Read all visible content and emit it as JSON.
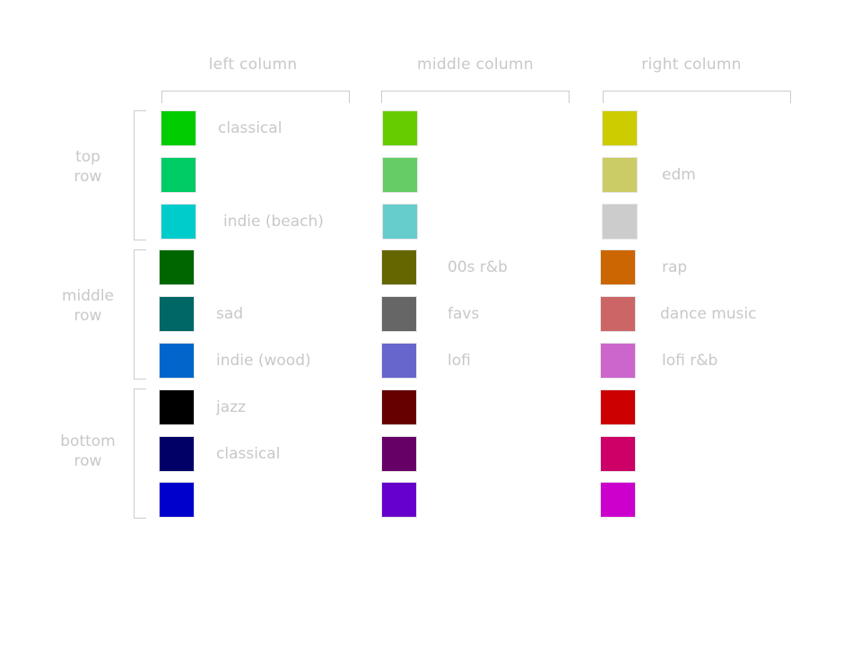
{
  "columns": [
    {
      "label": "left column"
    },
    {
      "label": "middle column"
    },
    {
      "label": "right column"
    }
  ],
  "rows": [
    {
      "label": "top\nrow"
    },
    {
      "label": "middle\nrow"
    },
    {
      "label": "bottom\nrow"
    }
  ],
  "swatches": [
    {
      "col": 0,
      "pos": 0,
      "color": "#00cc00",
      "label": "classical"
    },
    {
      "col": 0,
      "pos": 1,
      "color": "#00cc66",
      "label": ""
    },
    {
      "col": 0,
      "pos": 2,
      "color": "#00cccc",
      "label": "indie (beach)"
    },
    {
      "col": 0,
      "pos": 3,
      "color": "#006600",
      "label": ""
    },
    {
      "col": 0,
      "pos": 4,
      "color": "#006666",
      "label": "sad"
    },
    {
      "col": 0,
      "pos": 5,
      "color": "#0066cc",
      "label": "indie (wood)"
    },
    {
      "col": 0,
      "pos": 6,
      "color": "#000000",
      "label": "jazz"
    },
    {
      "col": 0,
      "pos": 7,
      "color": "#000066",
      "label": "classical"
    },
    {
      "col": 0,
      "pos": 8,
      "color": "#0000cc",
      "label": ""
    },
    {
      "col": 1,
      "pos": 0,
      "color": "#66cc00",
      "label": ""
    },
    {
      "col": 1,
      "pos": 1,
      "color": "#66cc66",
      "label": ""
    },
    {
      "col": 1,
      "pos": 2,
      "color": "#66cccc",
      "label": ""
    },
    {
      "col": 1,
      "pos": 3,
      "color": "#666600",
      "label": "00s r&b"
    },
    {
      "col": 1,
      "pos": 4,
      "color": "#666666",
      "label": "favs"
    },
    {
      "col": 1,
      "pos": 5,
      "color": "#6666cc",
      "label": "lofi"
    },
    {
      "col": 1,
      "pos": 6,
      "color": "#660000",
      "label": ""
    },
    {
      "col": 1,
      "pos": 7,
      "color": "#660066",
      "label": ""
    },
    {
      "col": 1,
      "pos": 8,
      "color": "#6600cc",
      "label": ""
    },
    {
      "col": 2,
      "pos": 0,
      "color": "#cccc00",
      "label": ""
    },
    {
      "col": 2,
      "pos": 1,
      "color": "#cccc66",
      "label": "edm"
    },
    {
      "col": 2,
      "pos": 2,
      "color": "#cccccc",
      "label": ""
    },
    {
      "col": 2,
      "pos": 3,
      "color": "#cc6600",
      "label": "rap"
    },
    {
      "col": 2,
      "pos": 4,
      "color": "#cc6666",
      "label": "dance music"
    },
    {
      "col": 2,
      "pos": 5,
      "color": "#cc66cc",
      "label": "lofi r&b"
    },
    {
      "col": 2,
      "pos": 6,
      "color": "#cc0000",
      "label": ""
    },
    {
      "col": 2,
      "pos": 7,
      "color": "#cc0066",
      "label": ""
    },
    {
      "col": 2,
      "pos": 8,
      "color": "#cc00cc",
      "label": ""
    }
  ]
}
